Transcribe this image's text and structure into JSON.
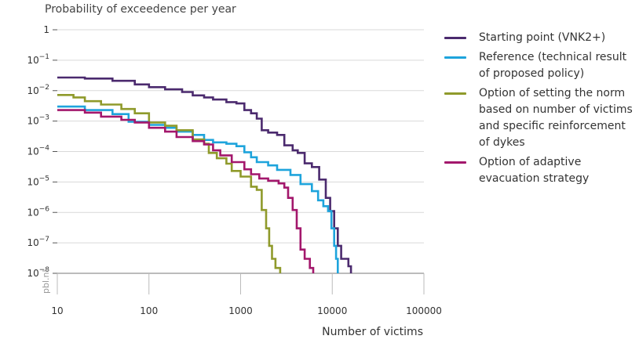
{
  "chart_data": {
    "type": "line",
    "ylabel": "Probability of exceedence per year",
    "xlabel": "Number of victims",
    "credit": "pbl.nl",
    "xscale": "log",
    "yscale": "log",
    "xlim": [
      10,
      100000
    ],
    "ylim": [
      1e-08,
      1
    ],
    "x_ticks": [
      10,
      100,
      1000,
      10000,
      100000
    ],
    "x_tick_labels": [
      "10",
      "100",
      "1000",
      "10000",
      "100000"
    ],
    "y_ticks": [
      1,
      0.1,
      0.01,
      0.001,
      0.0001,
      1e-05,
      1e-06,
      1e-07,
      1e-08
    ],
    "y_tick_labels": [
      {
        "base": "1",
        "exp": ""
      },
      {
        "base": "10",
        "exp": "−1"
      },
      {
        "base": "10",
        "exp": "−2"
      },
      {
        "base": "10",
        "exp": "−3"
      },
      {
        "base": "10",
        "exp": "−4"
      },
      {
        "base": "10",
        "exp": "−5"
      },
      {
        "base": "10",
        "exp": "−6"
      },
      {
        "base": "10",
        "exp": "−7"
      },
      {
        "base": "10",
        "exp": "−8"
      }
    ],
    "grid": true,
    "legend_position": "right",
    "series": [
      {
        "name": "Starting point (VNK2+)",
        "color": "#4b2a6e",
        "points": [
          [
            10,
            0.027
          ],
          [
            20,
            0.025
          ],
          [
            40,
            0.021
          ],
          [
            70,
            0.016
          ],
          [
            100,
            0.013
          ],
          [
            150,
            0.011
          ],
          [
            230,
            0.009
          ],
          [
            300,
            0.007
          ],
          [
            400,
            0.006
          ],
          [
            500,
            0.0051
          ],
          [
            700,
            0.0042
          ],
          [
            900,
            0.0038
          ],
          [
            1100,
            0.0023
          ],
          [
            1300,
            0.0018
          ],
          [
            1500,
            0.0012
          ],
          [
            1700,
            0.0005
          ],
          [
            2000,
            0.00042
          ],
          [
            2500,
            0.00035
          ],
          [
            3000,
            0.00016
          ],
          [
            3700,
            0.00011
          ],
          [
            4200,
            9e-05
          ],
          [
            5000,
            4.1e-05
          ],
          [
            6000,
            3.1e-05
          ],
          [
            7200,
            1.2e-05
          ],
          [
            8500,
            3e-06
          ],
          [
            9500,
            1.1e-06
          ],
          [
            10500,
            3e-07
          ],
          [
            11500,
            8e-08
          ],
          [
            12500,
            3e-08
          ],
          [
            15000,
            1.7e-08
          ],
          [
            16000,
            1e-08
          ]
        ]
      },
      {
        "name": "Reference (technical result of proposed policy)",
        "color": "#1ea4dc",
        "points": [
          [
            10,
            0.003
          ],
          [
            20,
            0.0023
          ],
          [
            40,
            0.0017
          ],
          [
            60,
            0.00095
          ],
          [
            100,
            0.00075
          ],
          [
            150,
            0.0006
          ],
          [
            200,
            0.00045
          ],
          [
            300,
            0.00035
          ],
          [
            400,
            0.00024
          ],
          [
            500,
            0.0002
          ],
          [
            700,
            0.00018
          ],
          [
            900,
            0.00015
          ],
          [
            1100,
            9.5e-05
          ],
          [
            1300,
            6.5e-05
          ],
          [
            1500,
            4.5e-05
          ],
          [
            2000,
            3.5e-05
          ],
          [
            2500,
            2.5e-05
          ],
          [
            3500,
            1.7e-05
          ],
          [
            4500,
            8.5e-06
          ],
          [
            6000,
            5e-06
          ],
          [
            7000,
            2.5e-06
          ],
          [
            8000,
            1.6e-06
          ],
          [
            9000,
            1.1e-06
          ],
          [
            9800,
            3e-07
          ],
          [
            10500,
            8e-08
          ],
          [
            11000,
            3e-08
          ],
          [
            11500,
            1e-08
          ]
        ]
      },
      {
        "name": "Option of setting the norm based on number of victims and specific reinforcement of dykes",
        "color": "#8f9a2b",
        "points": [
          [
            10,
            0.0072
          ],
          [
            15,
            0.006
          ],
          [
            20,
            0.0045
          ],
          [
            30,
            0.0035
          ],
          [
            50,
            0.0025
          ],
          [
            70,
            0.0018
          ],
          [
            100,
            0.0009
          ],
          [
            150,
            0.0007
          ],
          [
            200,
            0.0005
          ],
          [
            300,
            0.00025
          ],
          [
            400,
            0.00018
          ],
          [
            450,
            9e-05
          ],
          [
            550,
            6e-05
          ],
          [
            700,
            4e-05
          ],
          [
            800,
            2.3e-05
          ],
          [
            1000,
            1.5e-05
          ],
          [
            1300,
            7e-06
          ],
          [
            1500,
            5.5e-06
          ],
          [
            1700,
            1.2e-06
          ],
          [
            1900,
            3e-07
          ],
          [
            2050,
            8e-08
          ],
          [
            2200,
            3e-08
          ],
          [
            2400,
            1.5e-08
          ],
          [
            2700,
            1e-08
          ]
        ]
      },
      {
        "name": "Option of adaptive evacuation strategy",
        "color": "#a3176c",
        "points": [
          [
            10,
            0.0023
          ],
          [
            20,
            0.0019
          ],
          [
            30,
            0.0014
          ],
          [
            50,
            0.0011
          ],
          [
            70,
            0.0009
          ],
          [
            100,
            0.0006
          ],
          [
            150,
            0.00045
          ],
          [
            200,
            0.0003
          ],
          [
            300,
            0.00022
          ],
          [
            400,
            0.00017
          ],
          [
            500,
            0.00011
          ],
          [
            600,
            7.5e-05
          ],
          [
            800,
            4.5e-05
          ],
          [
            1100,
            2.6e-05
          ],
          [
            1300,
            1.8e-05
          ],
          [
            1600,
            1.3e-05
          ],
          [
            2000,
            1.1e-05
          ],
          [
            2600,
            9e-06
          ],
          [
            3000,
            6.5e-06
          ],
          [
            3300,
            3e-06
          ],
          [
            3700,
            1.2e-06
          ],
          [
            4100,
            3e-07
          ],
          [
            4500,
            6e-08
          ],
          [
            5000,
            3e-08
          ],
          [
            5700,
            1.5e-08
          ],
          [
            6200,
            1e-08
          ]
        ]
      }
    ]
  }
}
